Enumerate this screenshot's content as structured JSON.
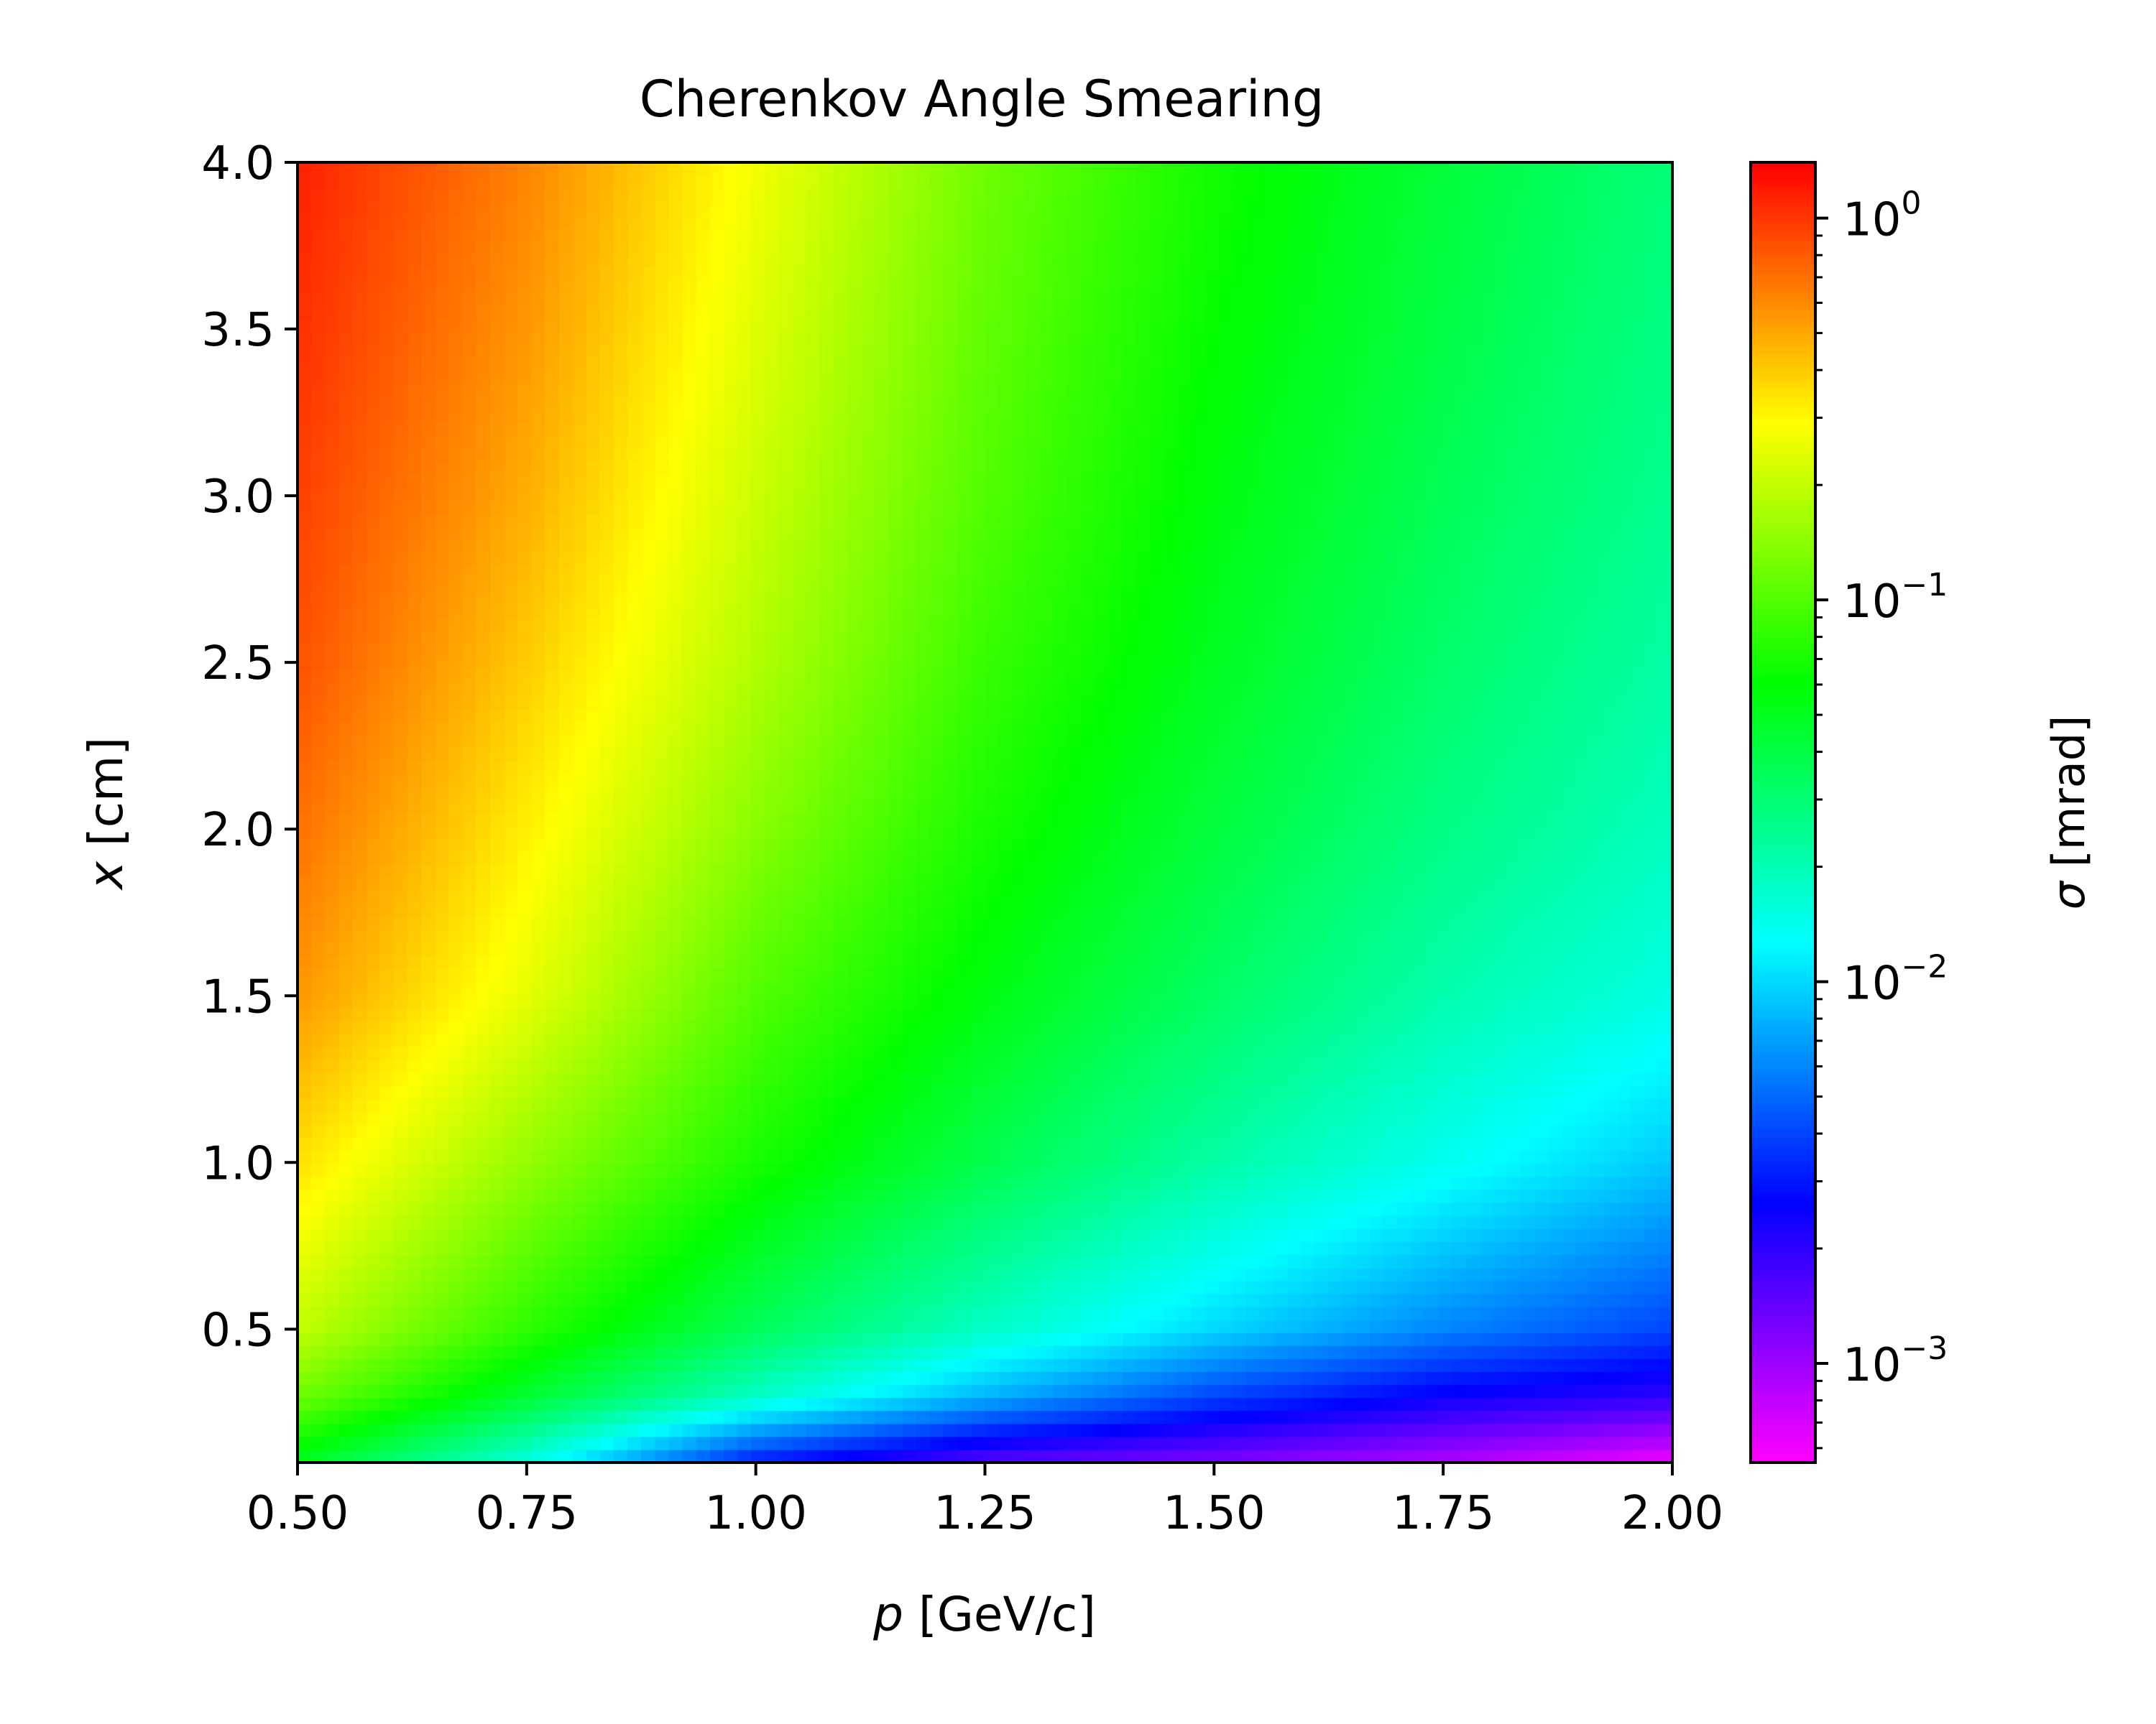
{
  "chart_data": {
    "type": "heatmap",
    "title": "Cherenkov Angle Smearing",
    "xlabel": {
      "var": "p",
      "unit": "[GeV/c]"
    },
    "ylabel": {
      "var": "x",
      "unit": "[cm]"
    },
    "xlim": [
      0.5,
      2.0
    ],
    "ylim": [
      0.1,
      4.0
    ],
    "xticks": [
      0.5,
      0.75,
      1.0,
      1.25,
      1.5,
      1.75,
      2.0
    ],
    "xtick_labels": [
      "0.50",
      "0.75",
      "1.00",
      "1.25",
      "1.50",
      "1.75",
      "2.00"
    ],
    "yticks": [
      0.5,
      1.0,
      1.5,
      2.0,
      2.5,
      3.0,
      3.5,
      4.0
    ],
    "ytick_labels": [
      "0.5",
      "1.0",
      "1.5",
      "2.0",
      "2.5",
      "3.0",
      "3.5",
      "4.0"
    ],
    "colorbar": {
      "label": {
        "var": "σ",
        "unit": "[mrad]"
      },
      "scale": "log",
      "colormap": "gist_rainbow_r",
      "range": [
        0.00055,
        1.4
      ],
      "ticks": [
        0.001,
        0.01,
        0.1,
        1
      ],
      "tick_labels": [
        {
          "base": "10",
          "exp": "−3"
        },
        {
          "base": "10",
          "exp": "−2"
        },
        {
          "base": "10",
          "exp": "−1"
        },
        {
          "base": "10",
          "exp": "0"
        }
      ]
    },
    "grid": {
      "p": [
        0.5,
        0.75,
        1.0,
        1.25,
        1.5,
        1.75,
        2.0
      ],
      "x": [
        0.1,
        0.3,
        0.5,
        1.0,
        1.5,
        2.0,
        2.5,
        3.0,
        3.5,
        4.0
      ],
      "sigma": [
        [
          0.05,
          0.015,
          0.003,
          0.0015,
          0.0012,
          0.0009,
          0.0006
        ],
        [
          0.12,
          0.045,
          0.018,
          0.008,
          0.004,
          0.0025,
          0.002
        ],
        [
          0.2,
          0.08,
          0.035,
          0.018,
          0.01,
          0.006,
          0.004
        ],
        [
          0.35,
          0.15,
          0.07,
          0.038,
          0.022,
          0.014,
          0.009
        ],
        [
          0.55,
          0.25,
          0.1,
          0.055,
          0.033,
          0.021,
          0.015
        ],
        [
          0.7,
          0.32,
          0.14,
          0.07,
          0.042,
          0.027,
          0.019
        ],
        [
          0.85,
          0.4,
          0.18,
          0.085,
          0.05,
          0.032,
          0.022
        ],
        [
          0.95,
          0.48,
          0.21,
          0.1,
          0.056,
          0.036,
          0.025
        ],
        [
          1.05,
          0.55,
          0.24,
          0.11,
          0.062,
          0.04,
          0.027
        ],
        [
          1.15,
          0.62,
          0.27,
          0.12,
          0.068,
          0.043,
          0.029
        ]
      ]
    }
  }
}
